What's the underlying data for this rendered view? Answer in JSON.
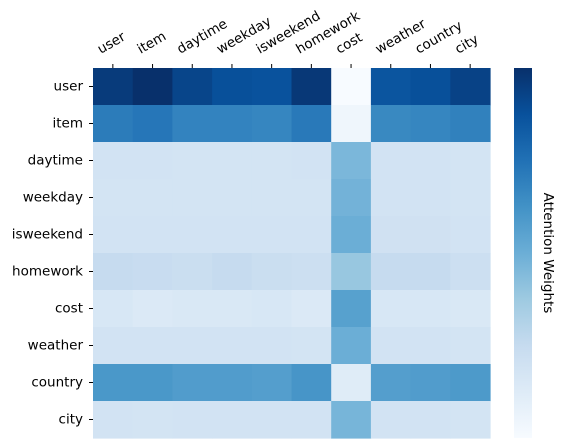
{
  "chart_data": {
    "type": "heatmap",
    "title": "",
    "x_labels": [
      "user",
      "item",
      "daytime",
      "weekday",
      "isweekend",
      "homework",
      "cost",
      "weather",
      "country",
      "city"
    ],
    "y_labels": [
      "user",
      "item",
      "daytime",
      "weekday",
      "isweekend",
      "homework",
      "cost",
      "weather",
      "country",
      "city"
    ],
    "x_tick_position": "top",
    "colormap": "Blues",
    "colorbar_label": "Attention Weights",
    "colorbar_tick_labels": "none",
    "values": [
      [
        0.96,
        1.0,
        0.92,
        0.88,
        0.87,
        0.97,
        0.0,
        0.86,
        0.88,
        0.93
      ],
      [
        0.71,
        0.73,
        0.68,
        0.68,
        0.67,
        0.72,
        0.04,
        0.66,
        0.67,
        0.69
      ],
      [
        0.19,
        0.19,
        0.18,
        0.18,
        0.18,
        0.19,
        0.46,
        0.19,
        0.19,
        0.18
      ],
      [
        0.18,
        0.18,
        0.18,
        0.18,
        0.18,
        0.18,
        0.48,
        0.19,
        0.19,
        0.18
      ],
      [
        0.19,
        0.19,
        0.19,
        0.19,
        0.19,
        0.19,
        0.5,
        0.2,
        0.2,
        0.19
      ],
      [
        0.25,
        0.24,
        0.23,
        0.25,
        0.23,
        0.22,
        0.39,
        0.25,
        0.25,
        0.22
      ],
      [
        0.16,
        0.14,
        0.15,
        0.15,
        0.16,
        0.14,
        0.56,
        0.16,
        0.16,
        0.15
      ],
      [
        0.19,
        0.19,
        0.19,
        0.19,
        0.19,
        0.18,
        0.5,
        0.19,
        0.19,
        0.18
      ],
      [
        0.6,
        0.6,
        0.58,
        0.58,
        0.57,
        0.61,
        0.12,
        0.57,
        0.58,
        0.59
      ],
      [
        0.19,
        0.18,
        0.19,
        0.19,
        0.19,
        0.19,
        0.47,
        0.19,
        0.19,
        0.18
      ]
    ],
    "value_range": [
      0,
      1
    ]
  }
}
